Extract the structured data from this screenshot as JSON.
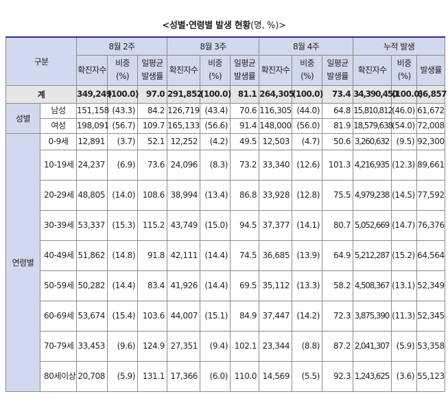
{
  "title": "<성별·연령별 발생 현황",
  "title_unit": "(명, %)>",
  "header": {
    "category": "구분",
    "periods": [
      "8월 2주",
      "8월 3주",
      "8월 4주",
      "누적 발생"
    ],
    "cols": [
      "확진자수",
      "비중 (%)",
      "일평균 발생률",
      "확진자수",
      "비중 (%)",
      "일평균 발생률",
      "확진자수",
      "비중 (%)",
      "일평균 발생률",
      "확진자수",
      "비중 (%)",
      "발생률"
    ]
  },
  "groups": {
    "total": "계",
    "sex": "성별",
    "age": "연령별"
  },
  "rows": [
    {
      "label": "계",
      "values": [
        "349,249",
        "(100.0)",
        "97.0",
        "291,852",
        "(100.0)",
        "81.1",
        "264,305",
        "(100.0)",
        "73.4",
        "34,390,450",
        "(100.0)",
        "66,857"
      ]
    },
    {
      "label": "남성",
      "values": [
        "151,158",
        "(43.3)",
        "84.2",
        "126,719",
        "(43.4)",
        "70.6",
        "116,305",
        "(44.0)",
        "64.8",
        "15,810,812",
        "(46.0)",
        "61,672"
      ]
    },
    {
      "label": "여성",
      "values": [
        "198,091",
        "(56.7)",
        "109.7",
        "165,133",
        "(56.6)",
        "91.4",
        "148,000",
        "(56.0)",
        "81.9",
        "18,579,638",
        "(54.0)",
        "72,008"
      ]
    },
    {
      "label": "0-9세",
      "values": [
        "12,891",
        "(3.7)",
        "52.1",
        "12,252",
        "(4.2)",
        "49.5",
        "12,503",
        "(4.7)",
        "50.6",
        "3,260,632",
        "(9.5)",
        "92,300"
      ]
    },
    {
      "label": "10-19세",
      "values": [
        "24,237",
        "(6.9)",
        "73.6",
        "24,096",
        "(8.3)",
        "73.2",
        "33,340",
        "(12.6)",
        "101.3",
        "4,216,935",
        "(12.3)",
        "89,661"
      ]
    },
    {
      "label": "20-29세",
      "values": [
        "48,805",
        "(14.0)",
        "108.6",
        "38,994",
        "(13.4)",
        "86.8",
        "33,928",
        "(12.8)",
        "75.5",
        "4,979,238",
        "(14.5)",
        "77,592"
      ]
    },
    {
      "label": "30-39세",
      "values": [
        "53,337",
        "(15.3)",
        "115.2",
        "43,749",
        "(15.0)",
        "94.5",
        "37,377",
        "(14.1)",
        "80.7",
        "5,052,669",
        "(14.7)",
        "76,376"
      ]
    },
    {
      "label": "40-49세",
      "values": [
        "51,862",
        "(14.8)",
        "91.8",
        "42,111",
        "(14.4)",
        "74.5",
        "36,685",
        "(13.9)",
        "64.9",
        "5,212,287",
        "(15.2)",
        "64,564"
      ]
    },
    {
      "label": "50-59세",
      "values": [
        "50,282",
        "(14.4)",
        "83.4",
        "41,926",
        "(14.4)",
        "69.5",
        "35,112",
        "(13.3)",
        "58.2",
        "4,508,367",
        "(13.1)",
        "52,349"
      ]
    },
    {
      "label": "60-69세",
      "values": [
        "53,674",
        "(15.4)",
        "103.6",
        "44,007",
        "(15.1)",
        "84.9",
        "37,447",
        "(14.2)",
        "72.3",
        "3,875,390",
        "(11.3)",
        "52,345"
      ]
    },
    {
      "label": "70-79세",
      "values": [
        "33,453",
        "(9.6)",
        "124.9",
        "27,351",
        "(9.4)",
        "102.1",
        "23,344",
        "(8.8)",
        "87.2",
        "2,041,307",
        "(5.9)",
        "53,358"
      ]
    },
    {
      "label": "80세이상",
      "values": [
        "20,708",
        "(5.9)",
        "131.1",
        "17,366",
        "(6.0)",
        "110.0",
        "14,569",
        "(5.5)",
        "92.3",
        "1,243,625",
        "(3.6)",
        "55,123"
      ]
    }
  ]
}
